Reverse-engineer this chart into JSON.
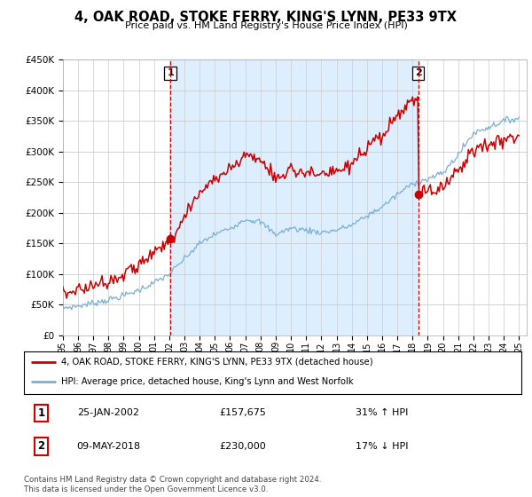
{
  "title": "4, OAK ROAD, STOKE FERRY, KING'S LYNN, PE33 9TX",
  "subtitle": "Price paid vs. HM Land Registry's House Price Index (HPI)",
  "legend_line1": "4, OAK ROAD, STOKE FERRY, KING'S LYNN, PE33 9TX (detached house)",
  "legend_line2": "HPI: Average price, detached house, King's Lynn and West Norfolk",
  "transaction1_date": "25-JAN-2002",
  "transaction1_price": "£157,675",
  "transaction1_hpi": "31% ↑ HPI",
  "transaction2_date": "09-MAY-2018",
  "transaction2_price": "£230,000",
  "transaction2_hpi": "17% ↓ HPI",
  "footer": "Contains HM Land Registry data © Crown copyright and database right 2024.\nThis data is licensed under the Open Government Licence v3.0.",
  "year_start": 1995,
  "year_end": 2025,
  "ylim": [
    0,
    450000
  ],
  "yticks": [
    0,
    50000,
    100000,
    150000,
    200000,
    250000,
    300000,
    350000,
    400000,
    450000
  ],
  "vline1_year": 2002.07,
  "vline2_year": 2018.36,
  "sale1_year": 2002.07,
  "sale1_price": 157675,
  "sale2_year": 2018.36,
  "sale2_price": 230000,
  "red_line_color": "#cc0000",
  "blue_line_color": "#7aafd4",
  "shade_color": "#ddeeff",
  "background_color": "#ffffff",
  "grid_color": "#cccccc",
  "vline_color": "#cc0000"
}
